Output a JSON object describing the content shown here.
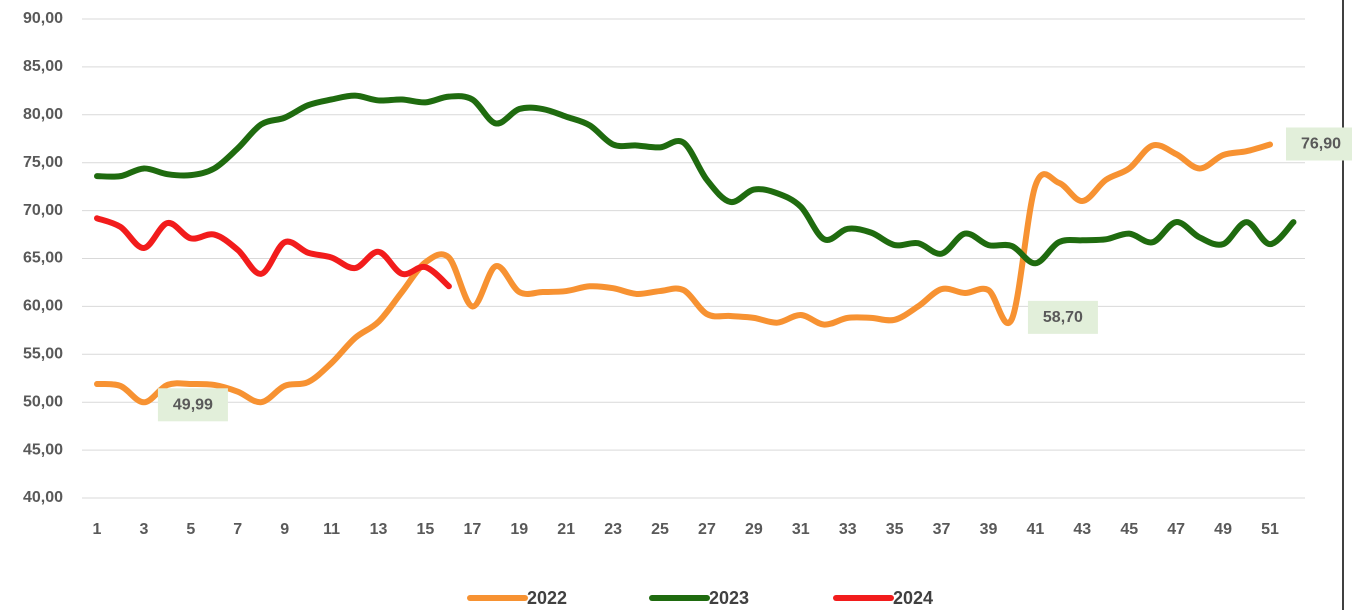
{
  "chart_data": {
    "type": "line",
    "categories": [
      1,
      null,
      3,
      null,
      5,
      null,
      7,
      null,
      9,
      null,
      11,
      null,
      13,
      null,
      15,
      null,
      17,
      null,
      19,
      null,
      21,
      null,
      23,
      null,
      25,
      null,
      27,
      null,
      29,
      null,
      31,
      null,
      33,
      null,
      35,
      null,
      37,
      null,
      39,
      null,
      41,
      null,
      43,
      null,
      45,
      null,
      47,
      null,
      49,
      null,
      51,
      null
    ],
    "series": [
      {
        "name": "2022",
        "color": "#f79232",
        "values": [
          51.9,
          51.7,
          49.99,
          51.8,
          51.9,
          51.8,
          51.1,
          50.0,
          51.7,
          52.1,
          54.1,
          56.7,
          58.4,
          61.5,
          64.6,
          65.1,
          60.0,
          64.2,
          61.5,
          61.5,
          61.6,
          62.1,
          61.9,
          61.3,
          61.6,
          61.7,
          59.2,
          59.0,
          58.8,
          58.3,
          59.1,
          58.1,
          58.8,
          58.8,
          58.6,
          60.0,
          61.8,
          61.4,
          61.7,
          58.7,
          72.6,
          72.9,
          71.0,
          73.2,
          74.4,
          76.8,
          75.9,
          74.4,
          75.8,
          76.2,
          76.9,
          null
        ],
        "value_labels": [
          null,
          null,
          "49,99",
          null,
          null,
          null,
          null,
          null,
          null,
          null,
          null,
          null,
          null,
          null,
          null,
          null,
          null,
          null,
          null,
          null,
          null,
          null,
          null,
          null,
          null,
          null,
          null,
          null,
          null,
          null,
          null,
          null,
          null,
          null,
          null,
          null,
          null,
          null,
          null,
          "58,70",
          null,
          null,
          null,
          null,
          null,
          null,
          null,
          null,
          null,
          null,
          "76,90",
          null
        ]
      },
      {
        "name": "2023",
        "color": "#1f6b0f",
        "values": [
          73.6,
          73.6,
          74.4,
          73.8,
          73.7,
          74.4,
          76.5,
          79.0,
          79.7,
          81.0,
          81.6,
          82.0,
          81.5,
          81.6,
          81.3,
          81.9,
          81.6,
          79.1,
          80.6,
          80.6,
          79.8,
          78.9,
          76.9,
          76.8,
          76.6,
          77.1,
          73.2,
          70.9,
          72.2,
          71.8,
          70.4,
          67.0,
          68.1,
          67.7,
          66.4,
          66.6,
          65.5,
          67.6,
          66.4,
          66.3,
          64.5,
          66.7,
          66.9,
          67.0,
          67.6,
          66.7,
          68.8,
          67.2,
          66.5,
          68.8,
          66.5,
          68.8
        ]
      },
      {
        "name": "2024",
        "color": "#f21c1c",
        "values": [
          69.2,
          68.3,
          66.1,
          68.7,
          67.1,
          67.5,
          65.9,
          63.4,
          66.7,
          65.6,
          65.1,
          64.0,
          65.7,
          63.4,
          64.1,
          62.1,
          null,
          null,
          null,
          null,
          null,
          null,
          null,
          null,
          null,
          null,
          null,
          null,
          null,
          null,
          null,
          null,
          null,
          null,
          null,
          null,
          null,
          null,
          null,
          null,
          null,
          null,
          null,
          null,
          null,
          null,
          null,
          null,
          null,
          null,
          null,
          null
        ]
      }
    ],
    "ylim": [
      40,
      90
    ],
    "yticks": [
      {
        "value": 40,
        "label": "40,00"
      },
      {
        "value": 45,
        "label": "45,00"
      },
      {
        "value": 50,
        "label": "50,00"
      },
      {
        "value": 55,
        "label": "55,00"
      },
      {
        "value": 60,
        "label": "60,00"
      },
      {
        "value": 65,
        "label": "65,00"
      },
      {
        "value": 70,
        "label": "70,00"
      },
      {
        "value": 75,
        "label": "75,00"
      },
      {
        "value": 80,
        "label": "80,00"
      },
      {
        "value": 85,
        "label": "85,00"
      },
      {
        "value": 90,
        "label": "90,00"
      }
    ],
    "grid": true,
    "legend": "bottom"
  }
}
